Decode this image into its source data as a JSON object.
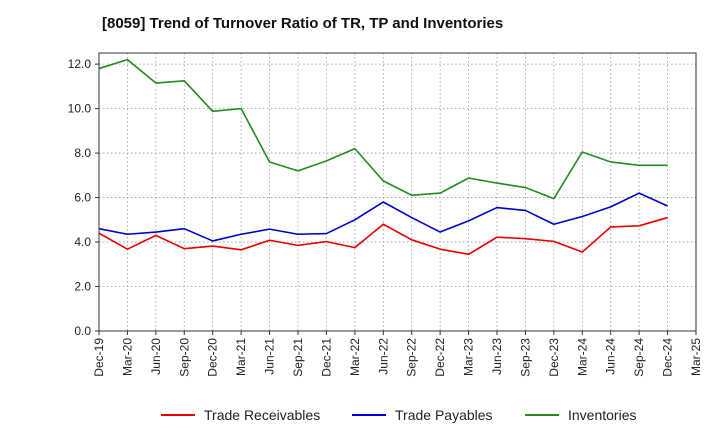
{
  "chart_data": {
    "type": "line",
    "title": "[8059]  Trend of Turnover Ratio of TR, TP and Inventories",
    "xlabel": "",
    "ylabel": "",
    "x_tick_labels": [
      "Dec-19",
      "Mar-20",
      "Jun-20",
      "Sep-20",
      "Dec-20",
      "Mar-21",
      "Jun-21",
      "Sep-21",
      "Dec-21",
      "Mar-22",
      "Jun-22",
      "Sep-22",
      "Dec-22",
      "Mar-23",
      "Jun-23",
      "Sep-23",
      "Dec-23",
      "Mar-24",
      "Jun-24",
      "Sep-24",
      "Dec-24",
      "Mar-25"
    ],
    "categories": [
      "Dec-19",
      "Mar-20",
      "Jun-20",
      "Sep-20",
      "Dec-20",
      "Mar-21",
      "Jun-21",
      "Sep-21",
      "Dec-21",
      "Mar-22",
      "Jun-22",
      "Sep-22",
      "Dec-22",
      "Mar-23",
      "Jun-23",
      "Sep-23",
      "Dec-23",
      "Mar-24",
      "Jun-24",
      "Sep-24",
      "Dec-24"
    ],
    "y_tick_labels": [
      "0.0",
      "2.0",
      "4.0",
      "6.0",
      "8.0",
      "10.0",
      "12.0"
    ],
    "ylim": [
      0,
      12.5
    ],
    "grid": true,
    "legend_position": "bottom",
    "series": [
      {
        "name": "Trade Receivables",
        "color": "#e60000",
        "values": [
          4.4,
          3.68,
          4.3,
          3.7,
          3.82,
          3.65,
          4.08,
          3.85,
          4.02,
          3.75,
          4.8,
          4.1,
          3.68,
          3.45,
          4.22,
          4.15,
          4.03,
          3.55,
          4.68,
          4.73,
          5.1
        ]
      },
      {
        "name": "Trade Payables",
        "color": "#0000cc",
        "values": [
          4.6,
          4.35,
          4.45,
          4.6,
          4.05,
          4.35,
          4.58,
          4.35,
          4.38,
          5.0,
          5.8,
          5.1,
          4.45,
          4.95,
          5.55,
          5.42,
          4.8,
          5.15,
          5.58,
          6.2,
          5.62
        ]
      },
      {
        "name": "Inventories",
        "color": "#228b22",
        "values": [
          11.8,
          12.2,
          11.15,
          11.25,
          9.88,
          10.0,
          7.6,
          7.2,
          7.65,
          8.2,
          6.75,
          6.1,
          6.2,
          6.88,
          6.65,
          6.45,
          5.95,
          8.05,
          7.6,
          7.45,
          7.45
        ]
      }
    ]
  }
}
